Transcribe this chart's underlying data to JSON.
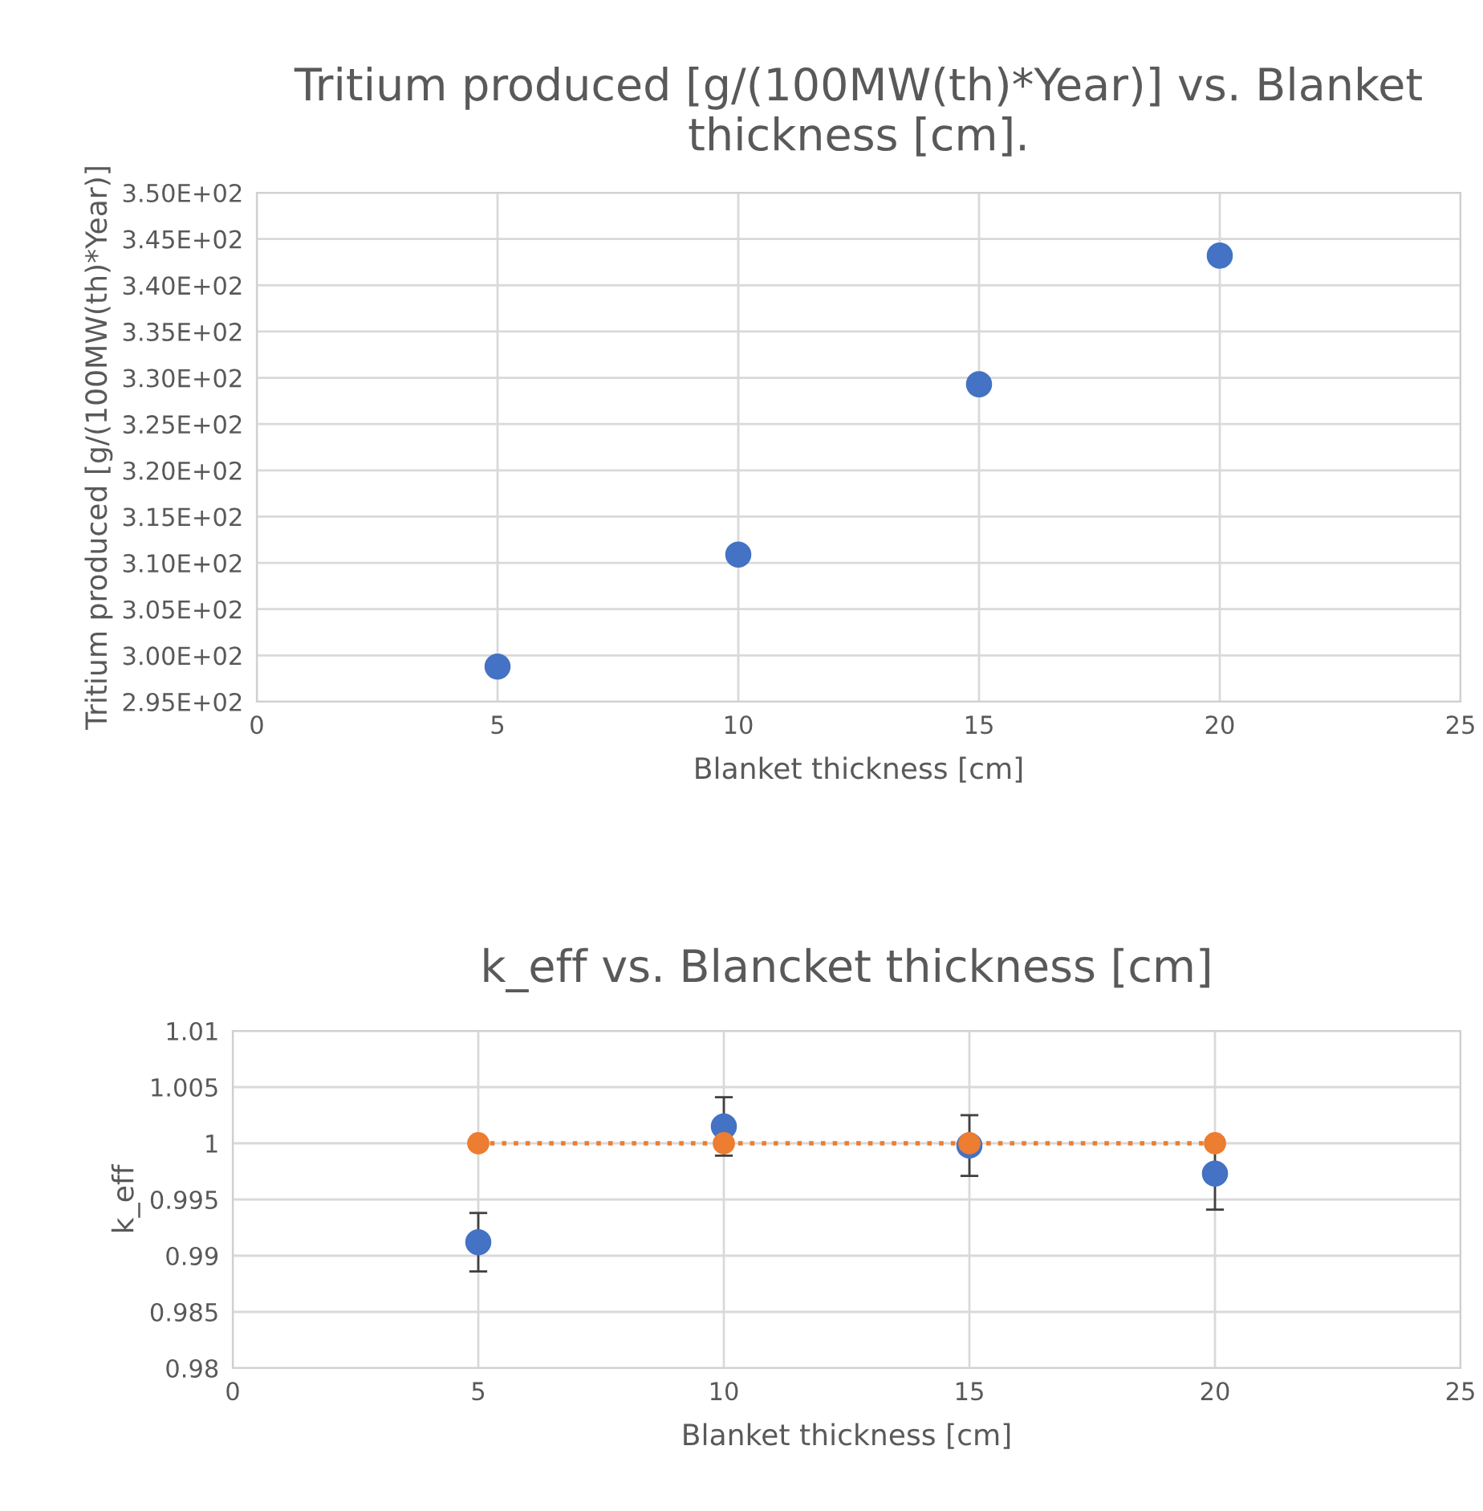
{
  "chart_data": [
    {
      "type": "scatter",
      "title": "Tritium produced [g/(100MW(th)*Year)] vs. Blanket thickness [cm].",
      "xlabel": "Blanket thickness [cm]",
      "ylabel": "Tritium produced [g/(100MW(th)*Year)]",
      "x": [
        5,
        10,
        15,
        20
      ],
      "series": [
        {
          "color": "#4472c4",
          "values": [
            298.8,
            310.9,
            329.3,
            343.2
          ]
        }
      ],
      "xlim": [
        0,
        25
      ],
      "xticks": [
        0,
        5,
        10,
        15,
        20,
        25
      ],
      "ylim": [
        295,
        350
      ],
      "yticks": [
        {
          "value": 295,
          "label": "2.95E+02"
        },
        {
          "value": 300,
          "label": "3.00E+02"
        },
        {
          "value": 305,
          "label": "3.05E+02"
        },
        {
          "value": 310,
          "label": "3.10E+02"
        },
        {
          "value": 315,
          "label": "3.15E+02"
        },
        {
          "value": 320,
          "label": "3.20E+02"
        },
        {
          "value": 325,
          "label": "3.25E+02"
        },
        {
          "value": 330,
          "label": "3.30E+02"
        },
        {
          "value": 335,
          "label": "3.35E+02"
        },
        {
          "value": 340,
          "label": "3.40E+02"
        },
        {
          "value": 345,
          "label": "3.45E+02"
        },
        {
          "value": 350,
          "label": "3.50E+02"
        }
      ],
      "grid": true,
      "marker": "circle"
    },
    {
      "type": "scatter",
      "title": "k_eff vs. Blancket thickness [cm]",
      "xlabel": "Blanket thickness [cm]",
      "ylabel": "k_eff",
      "x": [
        5,
        10,
        15,
        20
      ],
      "series": [
        {
          "type": "scatter",
          "color": "#4472c4",
          "values": [
            0.9912,
            1.0015,
            0.9998,
            0.9973
          ],
          "errors": [
            0.0026,
            0.0026,
            0.0027,
            0.0032
          ]
        },
        {
          "type": "line",
          "color": "#ed7d31",
          "values": [
            1,
            1,
            1,
            1
          ],
          "line_style": "dotted",
          "marker": "circle"
        }
      ],
      "xlim": [
        0,
        25
      ],
      "xticks": [
        0,
        5,
        10,
        15,
        20,
        25
      ],
      "ylim": [
        0.98,
        1.01
      ],
      "yticks": [
        0.98,
        0.985,
        0.99,
        0.995,
        1,
        1.005,
        1.01
      ],
      "grid": true,
      "marker": "circle"
    }
  ]
}
